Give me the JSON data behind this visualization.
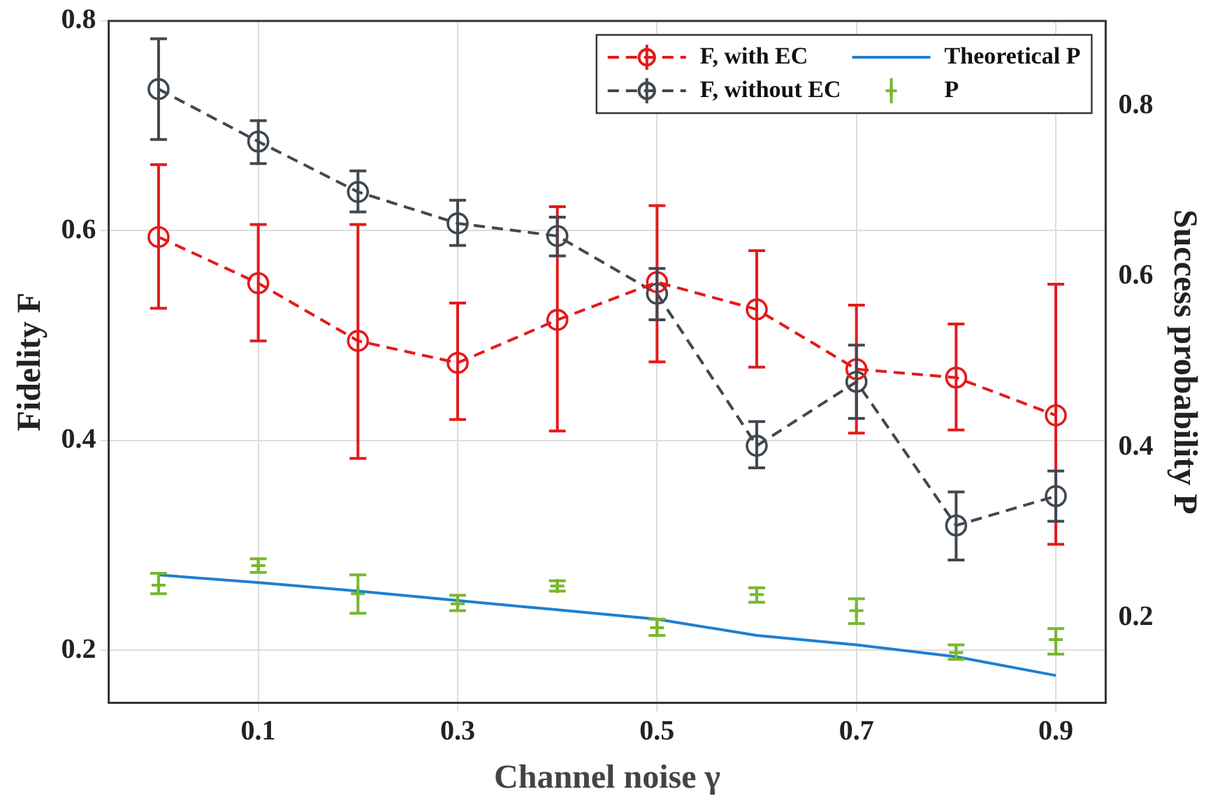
{
  "chart_data": {
    "type": "line",
    "xlabel": "Channel noise γ",
    "ylabel": "Fidelity F",
    "y2label": "Success probability P",
    "x": [
      0,
      0.1,
      0.2,
      0.3,
      0.4,
      0.5,
      0.6,
      0.7,
      0.8,
      0.9
    ],
    "xlim": [
      -0.05,
      0.95
    ],
    "xticks": [
      0.1,
      0.3,
      0.5,
      0.7,
      0.9
    ],
    "ylim": [
      0.15,
      0.8
    ],
    "yticks": [
      0.2,
      0.4,
      0.6,
      0.8
    ],
    "y2lim": [
      0.1,
      0.9
    ],
    "y2ticks": [
      0.2,
      0.4,
      0.6,
      0.8
    ],
    "grid": true,
    "legend": "top right",
    "series": [
      {
        "name": "F, with EC",
        "color": "#e41a1c",
        "marker": "circle",
        "line_style": "dashed",
        "values": [
          0.594,
          0.55,
          0.495,
          0.474,
          0.515,
          0.551,
          0.525,
          0.468,
          0.46,
          0.424
        ],
        "errors": [
          [
            0.526,
            0.663
          ],
          [
            0.495,
            0.606
          ],
          [
            0.383,
            0.606
          ],
          [
            0.42,
            0.531
          ],
          [
            0.409,
            0.623
          ],
          [
            0.475,
            0.624
          ],
          [
            0.47,
            0.581
          ],
          [
            0.407,
            0.529
          ],
          [
            0.41,
            0.511
          ],
          [
            0.301,
            0.549
          ]
        ]
      },
      {
        "name": "F, without EC",
        "color": "#404850",
        "marker": "circle",
        "line_style": "dashed",
        "values": [
          0.735,
          0.685,
          0.637,
          0.607,
          0.595,
          0.54,
          0.395,
          0.456,
          0.319,
          0.347
        ],
        "errors": [
          [
            0.687,
            0.783
          ],
          [
            0.664,
            0.705
          ],
          [
            0.618,
            0.657
          ],
          [
            0.586,
            0.629
          ],
          [
            0.576,
            0.613
          ],
          [
            0.515,
            0.564
          ],
          [
            0.374,
            0.418
          ],
          [
            0.421,
            0.491
          ],
          [
            0.286,
            0.351
          ],
          [
            0.323,
            0.371
          ]
        ]
      },
      {
        "name": "Theoretical P",
        "color": "#1f7fd0",
        "marker": "none",
        "line_style": "solid",
        "axis": "y2",
        "values": [
          0.25,
          0.241,
          0.231,
          0.22,
          0.209,
          0.198,
          0.179,
          0.168,
          0.154,
          0.132
        ]
      },
      {
        "name": "P",
        "color": "#77b82e",
        "type": "scatter",
        "marker": "cross",
        "axis": "y2",
        "values": [
          0.238,
          0.261,
          0.228,
          0.216,
          0.237,
          0.188,
          0.227,
          0.208,
          0.159,
          0.174
        ],
        "errors": [
          [
            0.228,
            0.252
          ],
          [
            0.253,
            0.269
          ],
          [
            0.205,
            0.25
          ],
          [
            0.208,
            0.226
          ],
          [
            0.231,
            0.243
          ],
          [
            0.179,
            0.198
          ],
          [
            0.218,
            0.235
          ],
          [
            0.193,
            0.222
          ],
          [
            0.151,
            0.168
          ],
          [
            0.157,
            0.187
          ]
        ]
      }
    ]
  }
}
